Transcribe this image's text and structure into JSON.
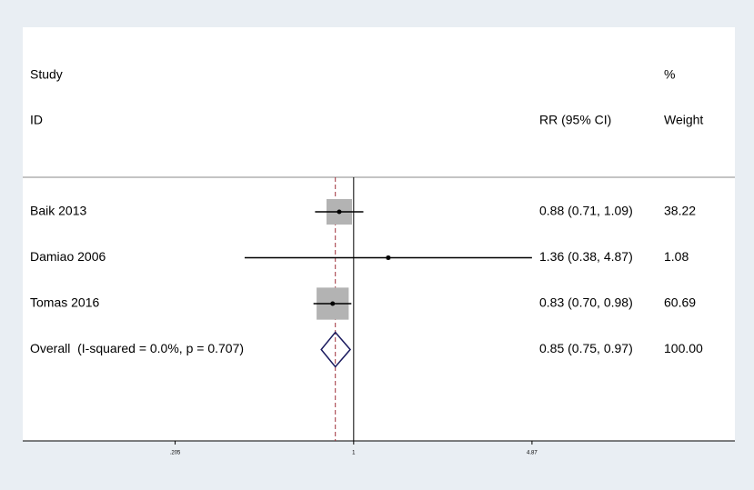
{
  "chart_data": {
    "type": "forest",
    "headers": {
      "study": "Study",
      "id": "ID",
      "effect": "RR (95% CI)",
      "percent": "%",
      "weight": "Weight"
    },
    "studies": [
      {
        "name": "Baik 2013",
        "rr": 0.88,
        "lo": 0.71,
        "hi": 1.09,
        "ci_label": "0.88 (0.71, 1.09)",
        "weight": 38.22
      },
      {
        "name": "Damiao 2006",
        "rr": 1.36,
        "lo": 0.38,
        "hi": 4.87,
        "ci_label": "1.36 (0.38, 4.87)",
        "weight": 1.08
      },
      {
        "name": "Tomas 2016",
        "rr": 0.83,
        "lo": 0.7,
        "hi": 0.98,
        "ci_label": "0.83 (0.70, 0.98)",
        "weight": 60.69
      }
    ],
    "overall": {
      "name": "Overall  (I-squared = 0.0%, p = 0.707)",
      "rr": 0.85,
      "lo": 0.75,
      "hi": 0.97,
      "ci_label": "0.85 (0.75, 0.97)",
      "weight": 100,
      "weight_label": "100.00"
    },
    "xlim": [
      0.053,
      29.5
    ],
    "xticks": [
      {
        "value": 0.205,
        "label": ".205"
      },
      1,
      4.87
    ],
    "log_x": true,
    "box_color": "#b3b3b3",
    "line_color": "#000000",
    "diamond_color": "#1a1a5e",
    "overall_line_color": "#a0303a"
  }
}
